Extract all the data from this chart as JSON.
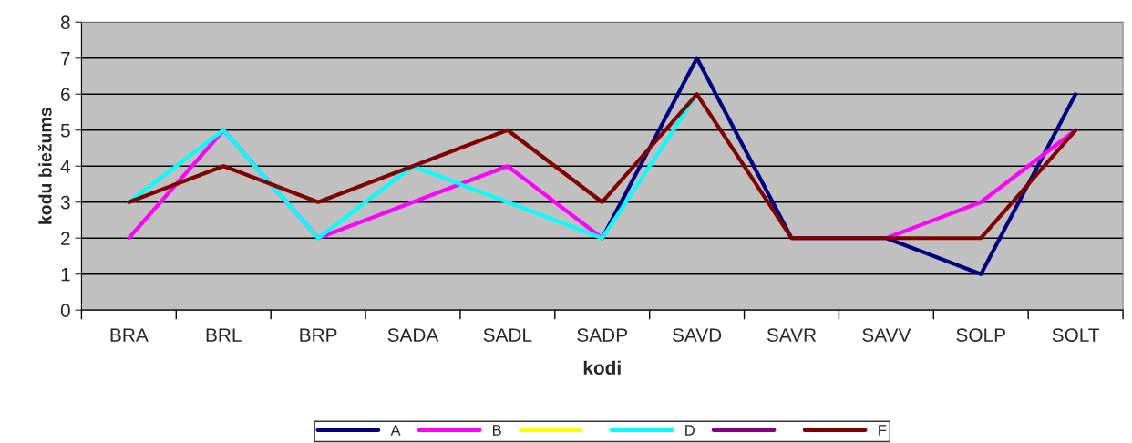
{
  "chart_data": {
    "type": "line",
    "xlabel": "kodi",
    "ylabel": "kodu biežums",
    "categories": [
      "BRA",
      "BRL",
      "BRP",
      "SADA",
      "SADL",
      "SADP",
      "SAVD",
      "SAVR",
      "SAVV",
      "SOLP",
      "SOLT"
    ],
    "series": [
      {
        "name": "A",
        "color": "#000080",
        "values": [
          null,
          null,
          null,
          null,
          null,
          2,
          7,
          2,
          2,
          1,
          6
        ]
      },
      {
        "name": "B",
        "color": "#ff00ff",
        "values": [
          2,
          5,
          2,
          3,
          4,
          2,
          null,
          null,
          2,
          3,
          5
        ]
      },
      {
        "color": "#ffff00",
        "values": [
          null,
          null,
          null,
          null,
          null,
          null,
          null,
          null,
          null,
          null,
          null
        ]
      },
      {
        "name": "D",
        "color": "#00ffff",
        "values": [
          3,
          5,
          2,
          4,
          3,
          2,
          6,
          null,
          null,
          null,
          null
        ]
      },
      {
        "color": "#800080",
        "values": [
          null,
          null,
          null,
          null,
          null,
          null,
          null,
          null,
          null,
          null,
          null
        ]
      },
      {
        "name": "F",
        "color": "#800000",
        "values": [
          3,
          4,
          3,
          4,
          5,
          3,
          6,
          2,
          2,
          2,
          5
        ]
      }
    ],
    "ylim": [
      0,
      8
    ],
    "yticks": [
      0,
      1,
      2,
      3,
      4,
      5,
      6,
      7,
      8
    ],
    "grid": "y",
    "legend": "bottom",
    "marker": "none",
    "line_style": "solid"
  }
}
